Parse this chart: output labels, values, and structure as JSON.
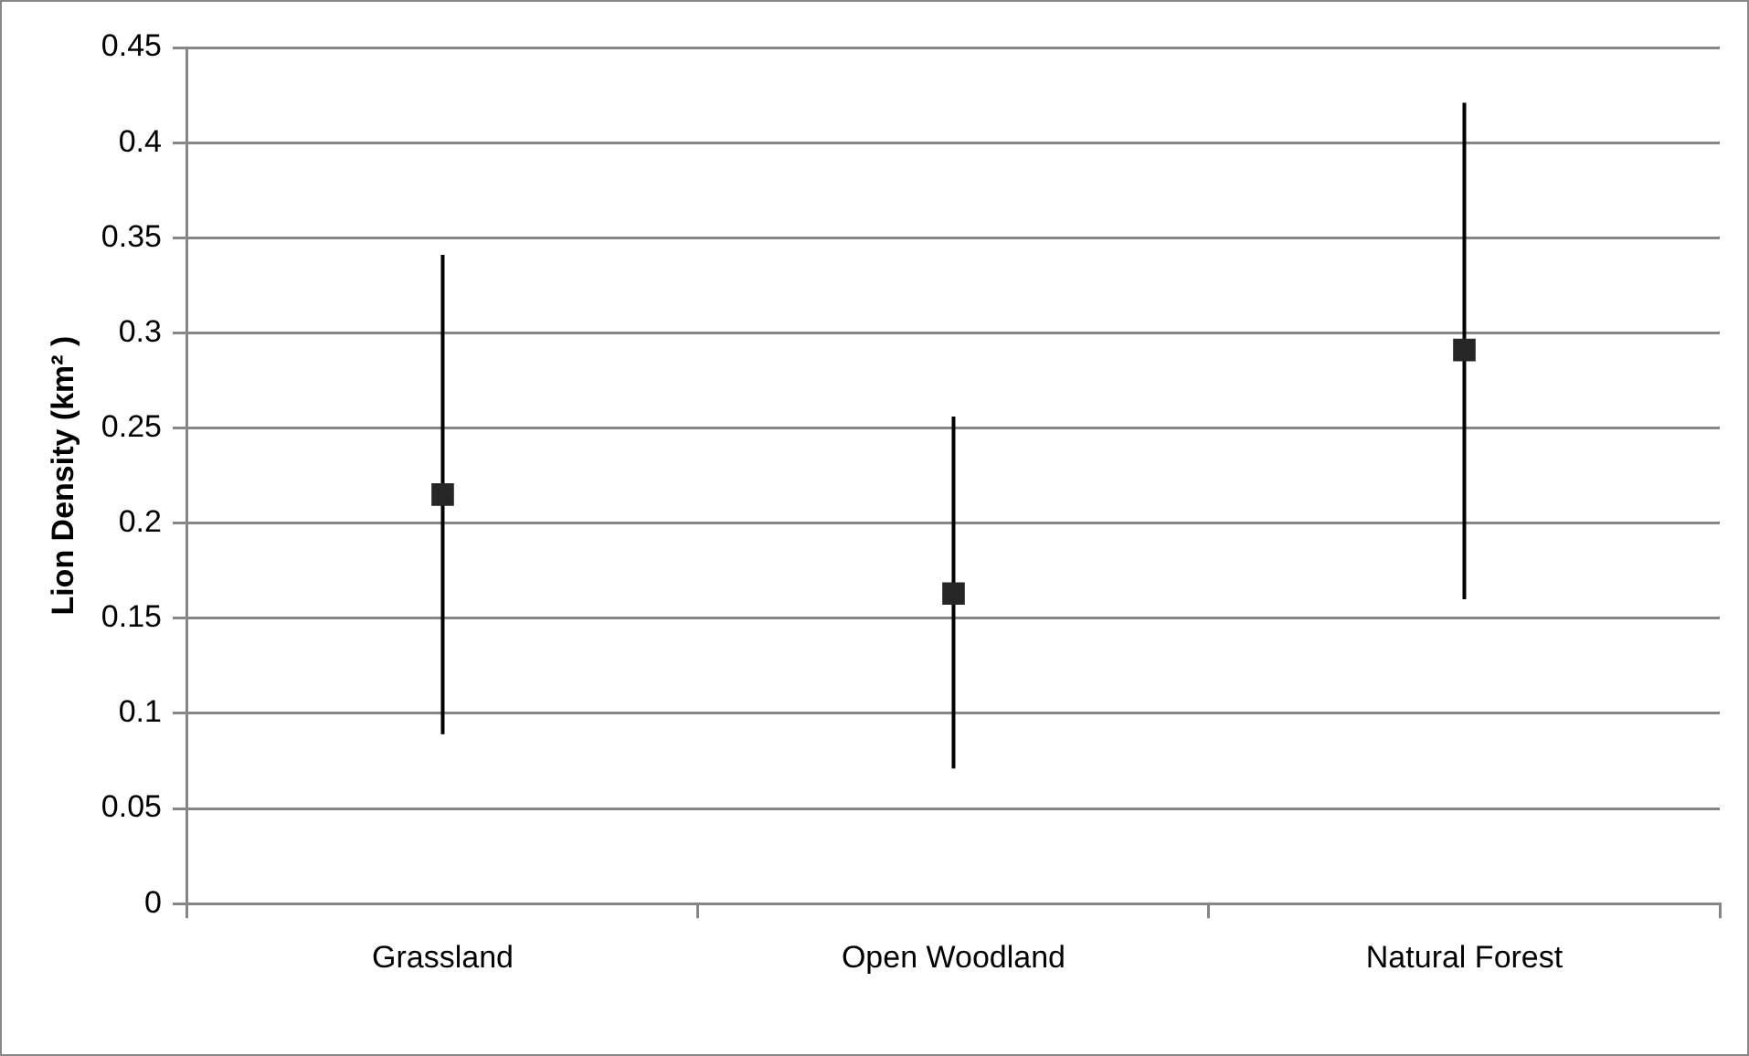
{
  "chart_data": {
    "type": "scatter",
    "ylabel": "Lion Density (km² )",
    "categories": [
      "Grassland",
      "Open Woodland",
      "Natural Forest"
    ],
    "values": [
      0.215,
      0.163,
      0.291
    ],
    "errors": [
      [
        0.089,
        0.341
      ],
      [
        0.071,
        0.256
      ],
      [
        0.16,
        0.421
      ]
    ],
    "color": "#262626",
    "marker": "square",
    "ylim": [
      0,
      0.45
    ],
    "yticks": [
      0,
      0.05,
      0.1,
      0.15,
      0.2,
      0.25,
      0.3,
      0.35,
      0.4,
      0.45
    ],
    "grid": "y",
    "legend": false
  }
}
